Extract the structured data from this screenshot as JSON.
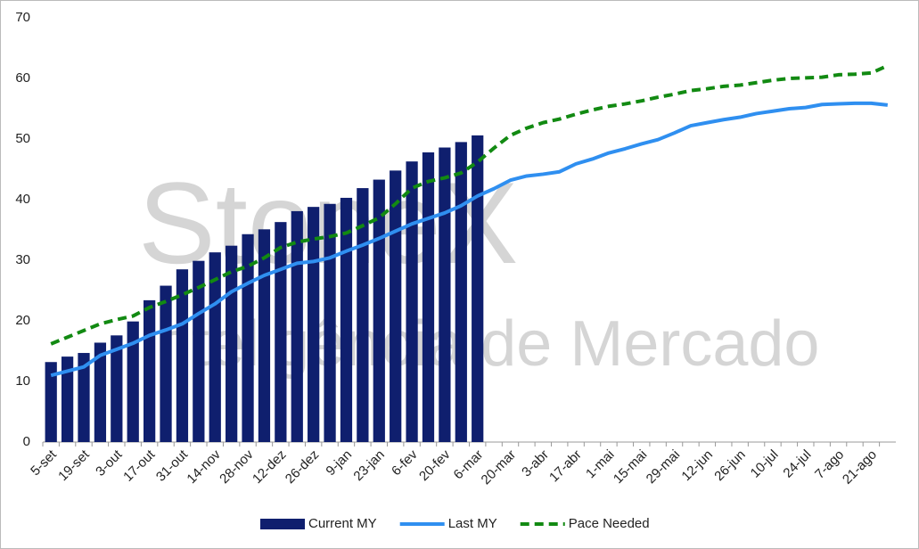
{
  "chart_data": {
    "type": "combo",
    "watermark": [
      "StoneX",
      "Inteligência de Mercado"
    ],
    "categories": [
      "5-set",
      null,
      "19-set",
      null,
      "3-out",
      null,
      "17-out",
      null,
      "31-out",
      null,
      "14-nov",
      null,
      "28-nov",
      null,
      "12-dez",
      null,
      "26-dez",
      null,
      "9-jan",
      null,
      "23-jan",
      null,
      "6-fev",
      null,
      "20-fev",
      null,
      "6-mar",
      null,
      "20-mar",
      null,
      "3-abr",
      null,
      "17-abr",
      null,
      "1-mai",
      null,
      "15-mai",
      null,
      "29-mai",
      null,
      "12-jun",
      null,
      "26-jun",
      null,
      "10-jul",
      null,
      "24-jul",
      null,
      "7-ago",
      null,
      "21-ago",
      null
    ],
    "series": [
      {
        "name": "Current MY",
        "kind": "bar",
        "color": "#0f1f6e",
        "values": [
          13.2,
          14.1,
          14.7,
          16.4,
          17.6,
          19.9,
          23.4,
          25.8,
          28.5,
          29.9,
          31.3,
          32.4,
          34.3,
          35.1,
          36.3,
          38.1,
          38.8,
          39.3,
          40.3,
          41.9,
          43.3,
          44.8,
          46.3,
          47.8,
          48.6,
          49.5,
          50.6,
          null,
          null,
          null,
          null,
          null,
          null,
          null,
          null,
          null,
          null,
          null,
          null,
          null,
          null,
          null,
          null,
          null,
          null,
          null,
          null,
          null,
          null,
          null,
          null,
          null
        ]
      },
      {
        "name": "Last MY",
        "kind": "line",
        "color": "#2f8ff0",
        "values": [
          11.0,
          11.7,
          12.4,
          14.3,
          15.3,
          16.3,
          17.6,
          18.5,
          19.5,
          21.2,
          22.8,
          24.8,
          26.2,
          27.5,
          28.5,
          29.5,
          29.8,
          30.4,
          31.5,
          32.5,
          33.6,
          34.8,
          36.0,
          36.9,
          37.8,
          39.0,
          40.6,
          41.8,
          43.2,
          43.9,
          44.2,
          44.6,
          45.9,
          46.7,
          47.7,
          48.4,
          49.2,
          49.9,
          51.0,
          52.2,
          52.7,
          53.2,
          53.6,
          54.2,
          54.6,
          55.0,
          55.2,
          55.7,
          55.8,
          55.9,
          55.9,
          55.6
        ]
      },
      {
        "name": "Pace Needed",
        "kind": "dashed-line",
        "color": "#128a12",
        "values": [
          16.2,
          17.3,
          18.4,
          19.5,
          20.2,
          20.8,
          22.2,
          23.2,
          24.3,
          25.5,
          26.8,
          28.1,
          29.0,
          30.4,
          32.1,
          33.0,
          33.5,
          33.9,
          34.5,
          35.7,
          37.0,
          39.3,
          41.9,
          43.0,
          43.6,
          44.4,
          46.2,
          48.5,
          50.6,
          51.8,
          52.7,
          53.3,
          54.1,
          54.8,
          55.4,
          55.8,
          56.3,
          56.9,
          57.4,
          58.0,
          58.3,
          58.7,
          58.9,
          59.3,
          59.7,
          60.0,
          60.1,
          60.2,
          60.6,
          60.7,
          60.9,
          62.1
        ]
      }
    ],
    "ylim": [
      0,
      70
    ],
    "yticks": [
      0,
      10,
      20,
      30,
      40,
      50,
      60,
      70
    ],
    "grid": false,
    "legend": "bottom"
  }
}
